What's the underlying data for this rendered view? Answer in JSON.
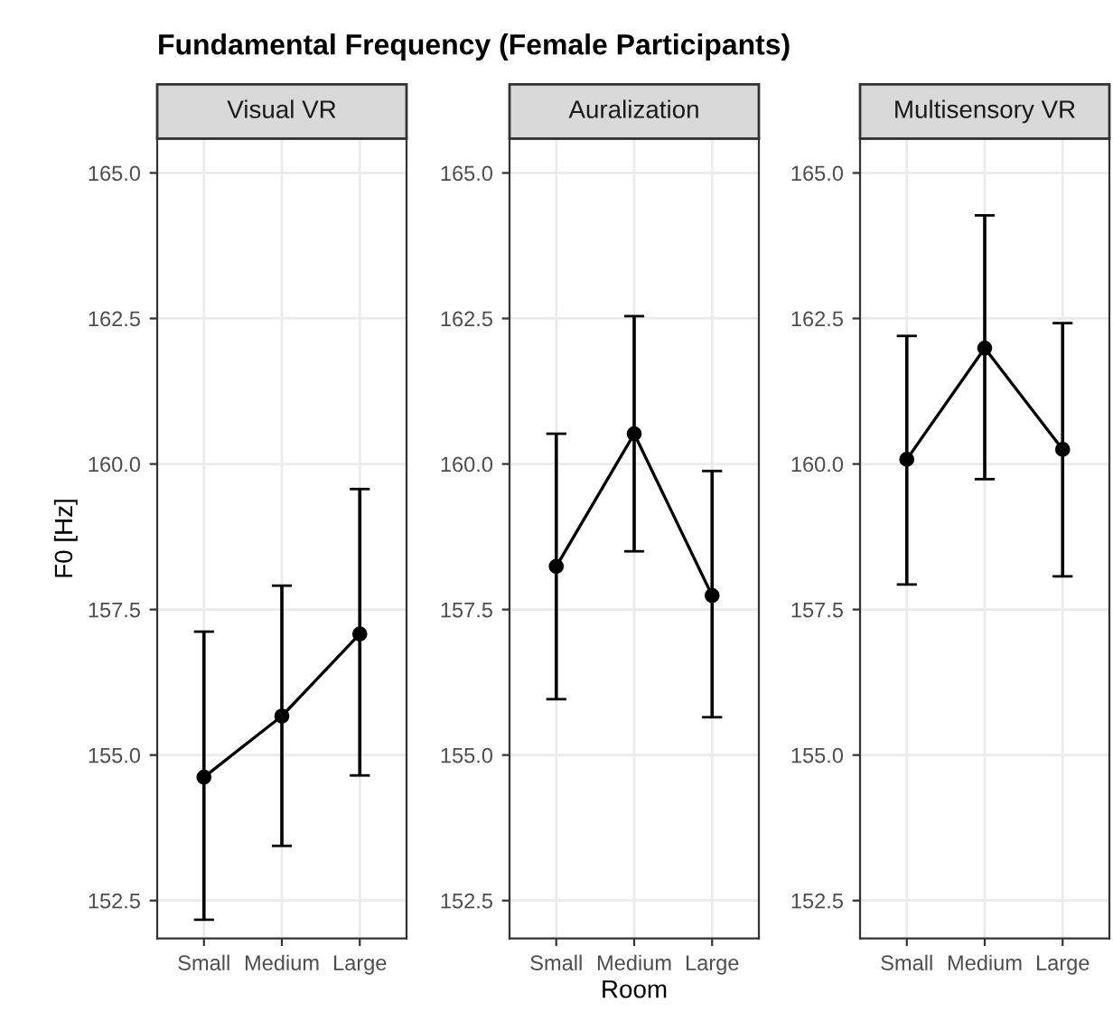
{
  "chart_data": [
    {
      "type": "line",
      "title": "Visual VR",
      "ylabel": "F0 [Hz]",
      "annotations": [
        "Fundamental Frequency (Female Participants)"
      ],
      "categories": [
        "Small",
        "Medium",
        "Large"
      ],
      "series": [
        {
          "color": "#000000",
          "values": [
            154.62,
            155.67,
            157.08
          ],
          "errors": [
            [
              152.17,
              157.12
            ],
            [
              153.44,
              157.91
            ],
            [
              154.65,
              159.57
            ]
          ]
        }
      ],
      "ylim": [
        151.85,
        165.59
      ],
      "yticks": [
        {
          "value": 152.5,
          "label": "152.5"
        },
        {
          "value": 155,
          "label": "155.0"
        },
        {
          "value": 157.5,
          "label": "157.5"
        },
        {
          "value": 160,
          "label": "160.0"
        },
        {
          "value": 162.5,
          "label": "162.5"
        },
        {
          "value": 165,
          "label": "165.0"
        }
      ],
      "grid": true,
      "marker": "circle",
      "line_style": "solid"
    },
    {
      "type": "line",
      "title": "Auralization",
      "xlabel": "Room",
      "categories": [
        "Small",
        "Medium",
        "Large"
      ],
      "series": [
        {
          "color": "#000000",
          "values": [
            158.24,
            160.52,
            157.74
          ],
          "errors": [
            [
              155.96,
              160.52
            ],
            [
              158.5,
              162.54
            ],
            [
              155.65,
              159.88
            ]
          ]
        }
      ],
      "ylim": [
        151.85,
        165.59
      ],
      "yticks": [
        {
          "value": 152.5,
          "label": "152.5"
        },
        {
          "value": 155,
          "label": "155.0"
        },
        {
          "value": 157.5,
          "label": "157.5"
        },
        {
          "value": 160,
          "label": "160.0"
        },
        {
          "value": 162.5,
          "label": "162.5"
        },
        {
          "value": 165,
          "label": "165.0"
        }
      ],
      "grid": true,
      "marker": "circle",
      "line_style": "solid"
    },
    {
      "type": "line",
      "title": "Multisensory VR",
      "categories": [
        "Small",
        "Medium",
        "Large"
      ],
      "series": [
        {
          "color": "#000000",
          "values": [
            160.08,
            161.99,
            160.25
          ],
          "errors": [
            [
              157.93,
              162.2
            ],
            [
              159.74,
              164.27
            ],
            [
              158.07,
              162.42
            ]
          ]
        }
      ],
      "ylim": [
        151.85,
        165.59
      ],
      "yticks": [
        {
          "value": 152.5,
          "label": "152.5"
        },
        {
          "value": 155,
          "label": "155.0"
        },
        {
          "value": 157.5,
          "label": "157.5"
        },
        {
          "value": 160,
          "label": "160.0"
        },
        {
          "value": 162.5,
          "label": "162.5"
        },
        {
          "value": 165,
          "label": "165.0"
        }
      ],
      "grid": true,
      "marker": "circle",
      "line_style": "solid"
    }
  ]
}
